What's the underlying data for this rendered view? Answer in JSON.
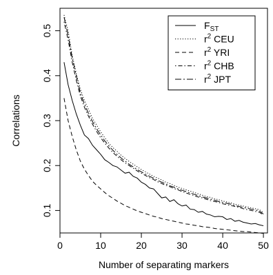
{
  "chart_data": {
    "type": "line",
    "title": "",
    "xlabel": "Number of separating markers",
    "ylabel": "Correlations",
    "xlim": [
      0,
      51
    ],
    "ylim": [
      0.05,
      0.55
    ],
    "x_ticks": [
      0,
      10,
      20,
      30,
      40,
      50
    ],
    "y_ticks": [
      0.1,
      0.2,
      0.3,
      0.4,
      0.5
    ],
    "x_tick_labels": [
      "0",
      "10",
      "20",
      "30",
      "40",
      "50"
    ],
    "y_tick_labels": [
      "0.1",
      "0.2",
      "0.3",
      "0.4",
      "0.5"
    ],
    "grid": false,
    "legend_position": "top-right",
    "x": [
      1,
      2,
      3,
      4,
      5,
      6,
      7,
      8,
      9,
      10,
      11,
      12,
      13,
      14,
      15,
      16,
      17,
      18,
      19,
      20,
      21,
      22,
      23,
      24,
      25,
      26,
      27,
      28,
      29,
      30,
      31,
      32,
      33,
      34,
      35,
      36,
      37,
      38,
      39,
      40,
      41,
      42,
      43,
      44,
      45,
      46,
      47,
      48,
      49,
      50
    ],
    "series": [
      {
        "name": "F",
        "name_sub": "ST",
        "line_style": "solid",
        "values": [
          0.43,
          0.38,
          0.345,
          0.315,
          0.29,
          0.268,
          0.26,
          0.245,
          0.235,
          0.225,
          0.213,
          0.207,
          0.2,
          0.197,
          0.19,
          0.183,
          0.185,
          0.176,
          0.172,
          0.163,
          0.158,
          0.15,
          0.148,
          0.138,
          0.128,
          0.13,
          0.12,
          0.124,
          0.115,
          0.11,
          0.112,
          0.103,
          0.102,
          0.096,
          0.098,
          0.092,
          0.09,
          0.086,
          0.087,
          0.086,
          0.08,
          0.082,
          0.076,
          0.078,
          0.074,
          0.072,
          0.07,
          0.071,
          0.068,
          0.066
        ]
      },
      {
        "name": "r",
        "name_sup": "2",
        "name_rest": " CEU",
        "line_style": "dotted",
        "values": [
          0.535,
          0.5,
          0.445,
          0.405,
          0.37,
          0.345,
          0.325,
          0.305,
          0.29,
          0.275,
          0.262,
          0.25,
          0.24,
          0.232,
          0.223,
          0.216,
          0.209,
          0.203,
          0.197,
          0.191,
          0.186,
          0.181,
          0.176,
          0.172,
          0.168,
          0.163,
          0.16,
          0.156,
          0.152,
          0.149,
          0.146,
          0.143,
          0.14,
          0.137,
          0.134,
          0.131,
          0.129,
          0.126,
          0.124,
          0.121,
          0.119,
          0.117,
          0.114,
          0.112,
          0.11,
          0.108,
          0.106,
          0.104,
          0.102,
          0.095
        ]
      },
      {
        "name": "r",
        "name_sup": "2",
        "name_rest": " YRI",
        "line_style": "dashed",
        "values": [
          0.35,
          0.3,
          0.265,
          0.235,
          0.21,
          0.192,
          0.178,
          0.165,
          0.156,
          0.148,
          0.14,
          0.133,
          0.127,
          0.121,
          0.116,
          0.111,
          0.107,
          0.103,
          0.099,
          0.096,
          0.093,
          0.09,
          0.087,
          0.085,
          0.082,
          0.08,
          0.078,
          0.076,
          0.074,
          0.072,
          0.07,
          0.069,
          0.067,
          0.066,
          0.064,
          0.063,
          0.062,
          0.06,
          0.059,
          0.058,
          0.057,
          0.056,
          0.055,
          0.054,
          0.053,
          0.053,
          0.052,
          0.051,
          0.05,
          0.049
        ]
      },
      {
        "name": "r",
        "name_sup": "2",
        "name_rest": " CHB",
        "line_style": "dotdash",
        "values": [
          0.52,
          0.48,
          0.43,
          0.39,
          0.355,
          0.33,
          0.31,
          0.292,
          0.276,
          0.262,
          0.25,
          0.239,
          0.229,
          0.221,
          0.213,
          0.206,
          0.2,
          0.194,
          0.188,
          0.183,
          0.178,
          0.173,
          0.169,
          0.164,
          0.16,
          0.156,
          0.153,
          0.149,
          0.146,
          0.142,
          0.139,
          0.136,
          0.133,
          0.13,
          0.128,
          0.125,
          0.122,
          0.12,
          0.118,
          0.115,
          0.113,
          0.111,
          0.109,
          0.107,
          0.104,
          0.102,
          0.1,
          0.098,
          0.096,
          0.09
        ]
      },
      {
        "name": "r",
        "name_sup": "2",
        "name_rest": " JPT",
        "line_style": "longdash",
        "values": [
          0.53,
          0.49,
          0.44,
          0.4,
          0.362,
          0.337,
          0.316,
          0.298,
          0.282,
          0.268,
          0.255,
          0.244,
          0.234,
          0.225,
          0.217,
          0.21,
          0.203,
          0.197,
          0.191,
          0.186,
          0.181,
          0.176,
          0.172,
          0.167,
          0.163,
          0.159,
          0.155,
          0.152,
          0.148,
          0.145,
          0.142,
          0.139,
          0.136,
          0.133,
          0.13,
          0.128,
          0.125,
          0.123,
          0.12,
          0.118,
          0.116,
          0.114,
          0.111,
          0.109,
          0.107,
          0.105,
          0.103,
          0.101,
          0.099,
          0.092
        ]
      }
    ]
  }
}
